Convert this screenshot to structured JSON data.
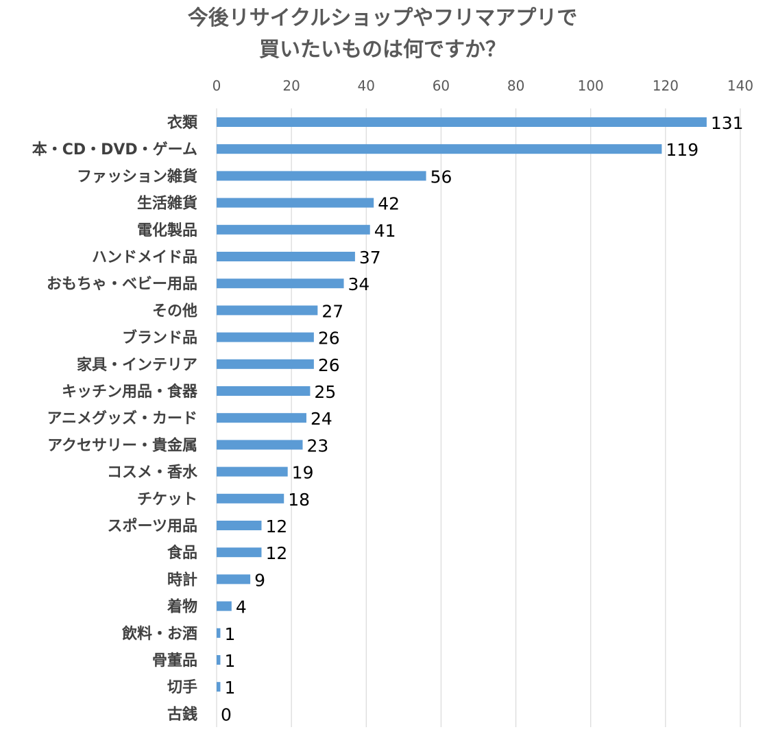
{
  "chart_data": {
    "type": "bar",
    "orientation": "horizontal",
    "title_lines": [
      "今後リサイクルショップやフリマアプリで",
      "買いたいものは何ですか？"
    ],
    "categories": [
      "衣類",
      "本・CD・DVD・ゲーム",
      "ファッション雑貨",
      "生活雑貨",
      "電化製品",
      "ハンドメイド品",
      "おもちゃ・ベビー用品",
      "その他",
      "ブランド品",
      "家具・インテリア",
      "キッチン用品・食器",
      "アニメグッズ・カード",
      "アクセサリー・貴金属",
      "コスメ・香水",
      "チケット",
      "スポーツ用品",
      "食品",
      "時計",
      "着物",
      "飲料・お酒",
      "骨董品",
      "切手",
      "古銭"
    ],
    "values": [
      131,
      119,
      56,
      42,
      41,
      37,
      34,
      27,
      26,
      26,
      25,
      24,
      23,
      19,
      18,
      12,
      12,
      9,
      4,
      1,
      1,
      1,
      0
    ],
    "xlim": [
      0,
      140
    ],
    "x_ticks": [
      0,
      20,
      40,
      60,
      80,
      100,
      120,
      140
    ],
    "x_axis_position": "top",
    "gridlines": true,
    "data_labels": true,
    "legend": "none",
    "bar_color": "#5b9bd5",
    "gridline_color": "#d9d9d9"
  }
}
